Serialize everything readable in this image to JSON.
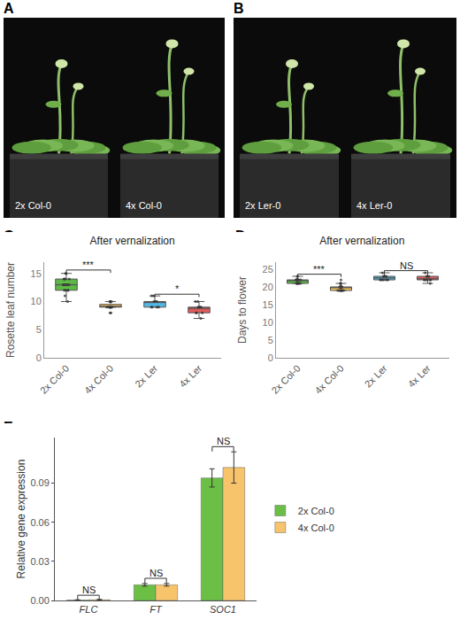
{
  "photos": [
    {
      "label": "A",
      "pots": [
        "2x Col-0",
        "4x Col-0"
      ]
    },
    {
      "label": "B",
      "pots": [
        "2x Ler-0",
        "4x Ler-0"
      ]
    }
  ],
  "chart_data": [
    {
      "label": "C",
      "type": "box",
      "title": "After vernalization",
      "y_label": "Rosette leaf number",
      "categories": [
        "2x Col-0",
        "4x Col-0",
        "2x Ler",
        "4x Ler"
      ],
      "colors": [
        "#5cb946",
        "#f6c25b",
        "#52b9e6",
        "#e35b5b"
      ],
      "points": [
        [
          10,
          11,
          12,
          12,
          12,
          12,
          13,
          13,
          13,
          13,
          13,
          13,
          13,
          13,
          14,
          14,
          14,
          14,
          15,
          15
        ],
        [
          8,
          8,
          9,
          9,
          9,
          9,
          9,
          9,
          9,
          9,
          9,
          9,
          9,
          9,
          9,
          10,
          10,
          10,
          10,
          10
        ],
        [
          9,
          9,
          9,
          9,
          10,
          10,
          10,
          10,
          11,
          11
        ],
        [
          7,
          8,
          8,
          8,
          9,
          9,
          9,
          9,
          10,
          10
        ]
      ],
      "ylim": [
        0,
        17
      ],
      "yticks": [
        0,
        5,
        10,
        15
      ],
      "annotations": [
        {
          "text": "***",
          "from": 0,
          "to": 1,
          "y": 15.6
        },
        {
          "text": "*",
          "from": 2,
          "to": 3,
          "y": 11.3
        }
      ]
    },
    {
      "label": "D",
      "type": "box",
      "title": "After vernalization",
      "y_label": "Days to flower",
      "categories": [
        "2x Col-0",
        "4x Col-0",
        "2x Ler",
        "4x Ler"
      ],
      "colors": [
        "#5cb946",
        "#f6c25b",
        "#52b9e6",
        "#e35b5b"
      ],
      "points": [
        [
          21,
          21,
          21,
          21,
          22,
          22,
          22,
          22,
          22,
          22,
          22,
          22,
          23,
          23,
          21,
          22,
          22,
          21,
          22,
          22
        ],
        [
          19,
          19,
          19,
          19,
          19,
          20,
          20,
          20,
          20,
          20,
          20,
          20,
          21,
          21,
          21,
          22,
          19,
          20,
          20,
          19
        ],
        [
          22,
          22,
          22,
          23,
          23,
          23,
          24,
          22,
          23,
          22
        ],
        [
          21,
          22,
          22,
          22,
          23,
          23,
          23,
          24,
          22,
          22
        ]
      ],
      "ylim": [
        0,
        27
      ],
      "yticks": [
        0,
        5,
        10,
        15,
        20,
        25
      ],
      "annotations": [
        {
          "text": "***",
          "from": 0,
          "to": 1,
          "y": 23.6
        },
        {
          "text": "NS",
          "from": 2,
          "to": 3,
          "y": 24.6
        }
      ]
    },
    {
      "label": "E",
      "type": "bar",
      "y_label": "Relative gene expression",
      "categories": [
        "FLC",
        "FT",
        "SOC1"
      ],
      "series": [
        {
          "name": "2x Col-0",
          "color": "#6bbf45",
          "values": [
            0.0003,
            0.012,
            0.094
          ],
          "errors": [
            0.0002,
            0.001,
            0.007
          ]
        },
        {
          "name": "4x Col-0",
          "color": "#f7c46c",
          "values": [
            0.0005,
            0.012,
            0.102
          ],
          "errors": [
            0.0003,
            0.001,
            0.012
          ]
        }
      ],
      "ylim": [
        0,
        0.125
      ],
      "yticks": [
        {
          "value": 0,
          "label": "0.00"
        },
        0.03,
        0.06,
        0.09
      ],
      "legend": "right",
      "annotations": [
        {
          "text": "NS",
          "from": 0,
          "to": 0,
          "y": 0.004
        },
        {
          "text": "NS",
          "from": 1,
          "to": 1,
          "y": 0.017
        },
        {
          "text": "NS",
          "from": 2,
          "to": 2,
          "y": 0.118
        }
      ]
    }
  ]
}
